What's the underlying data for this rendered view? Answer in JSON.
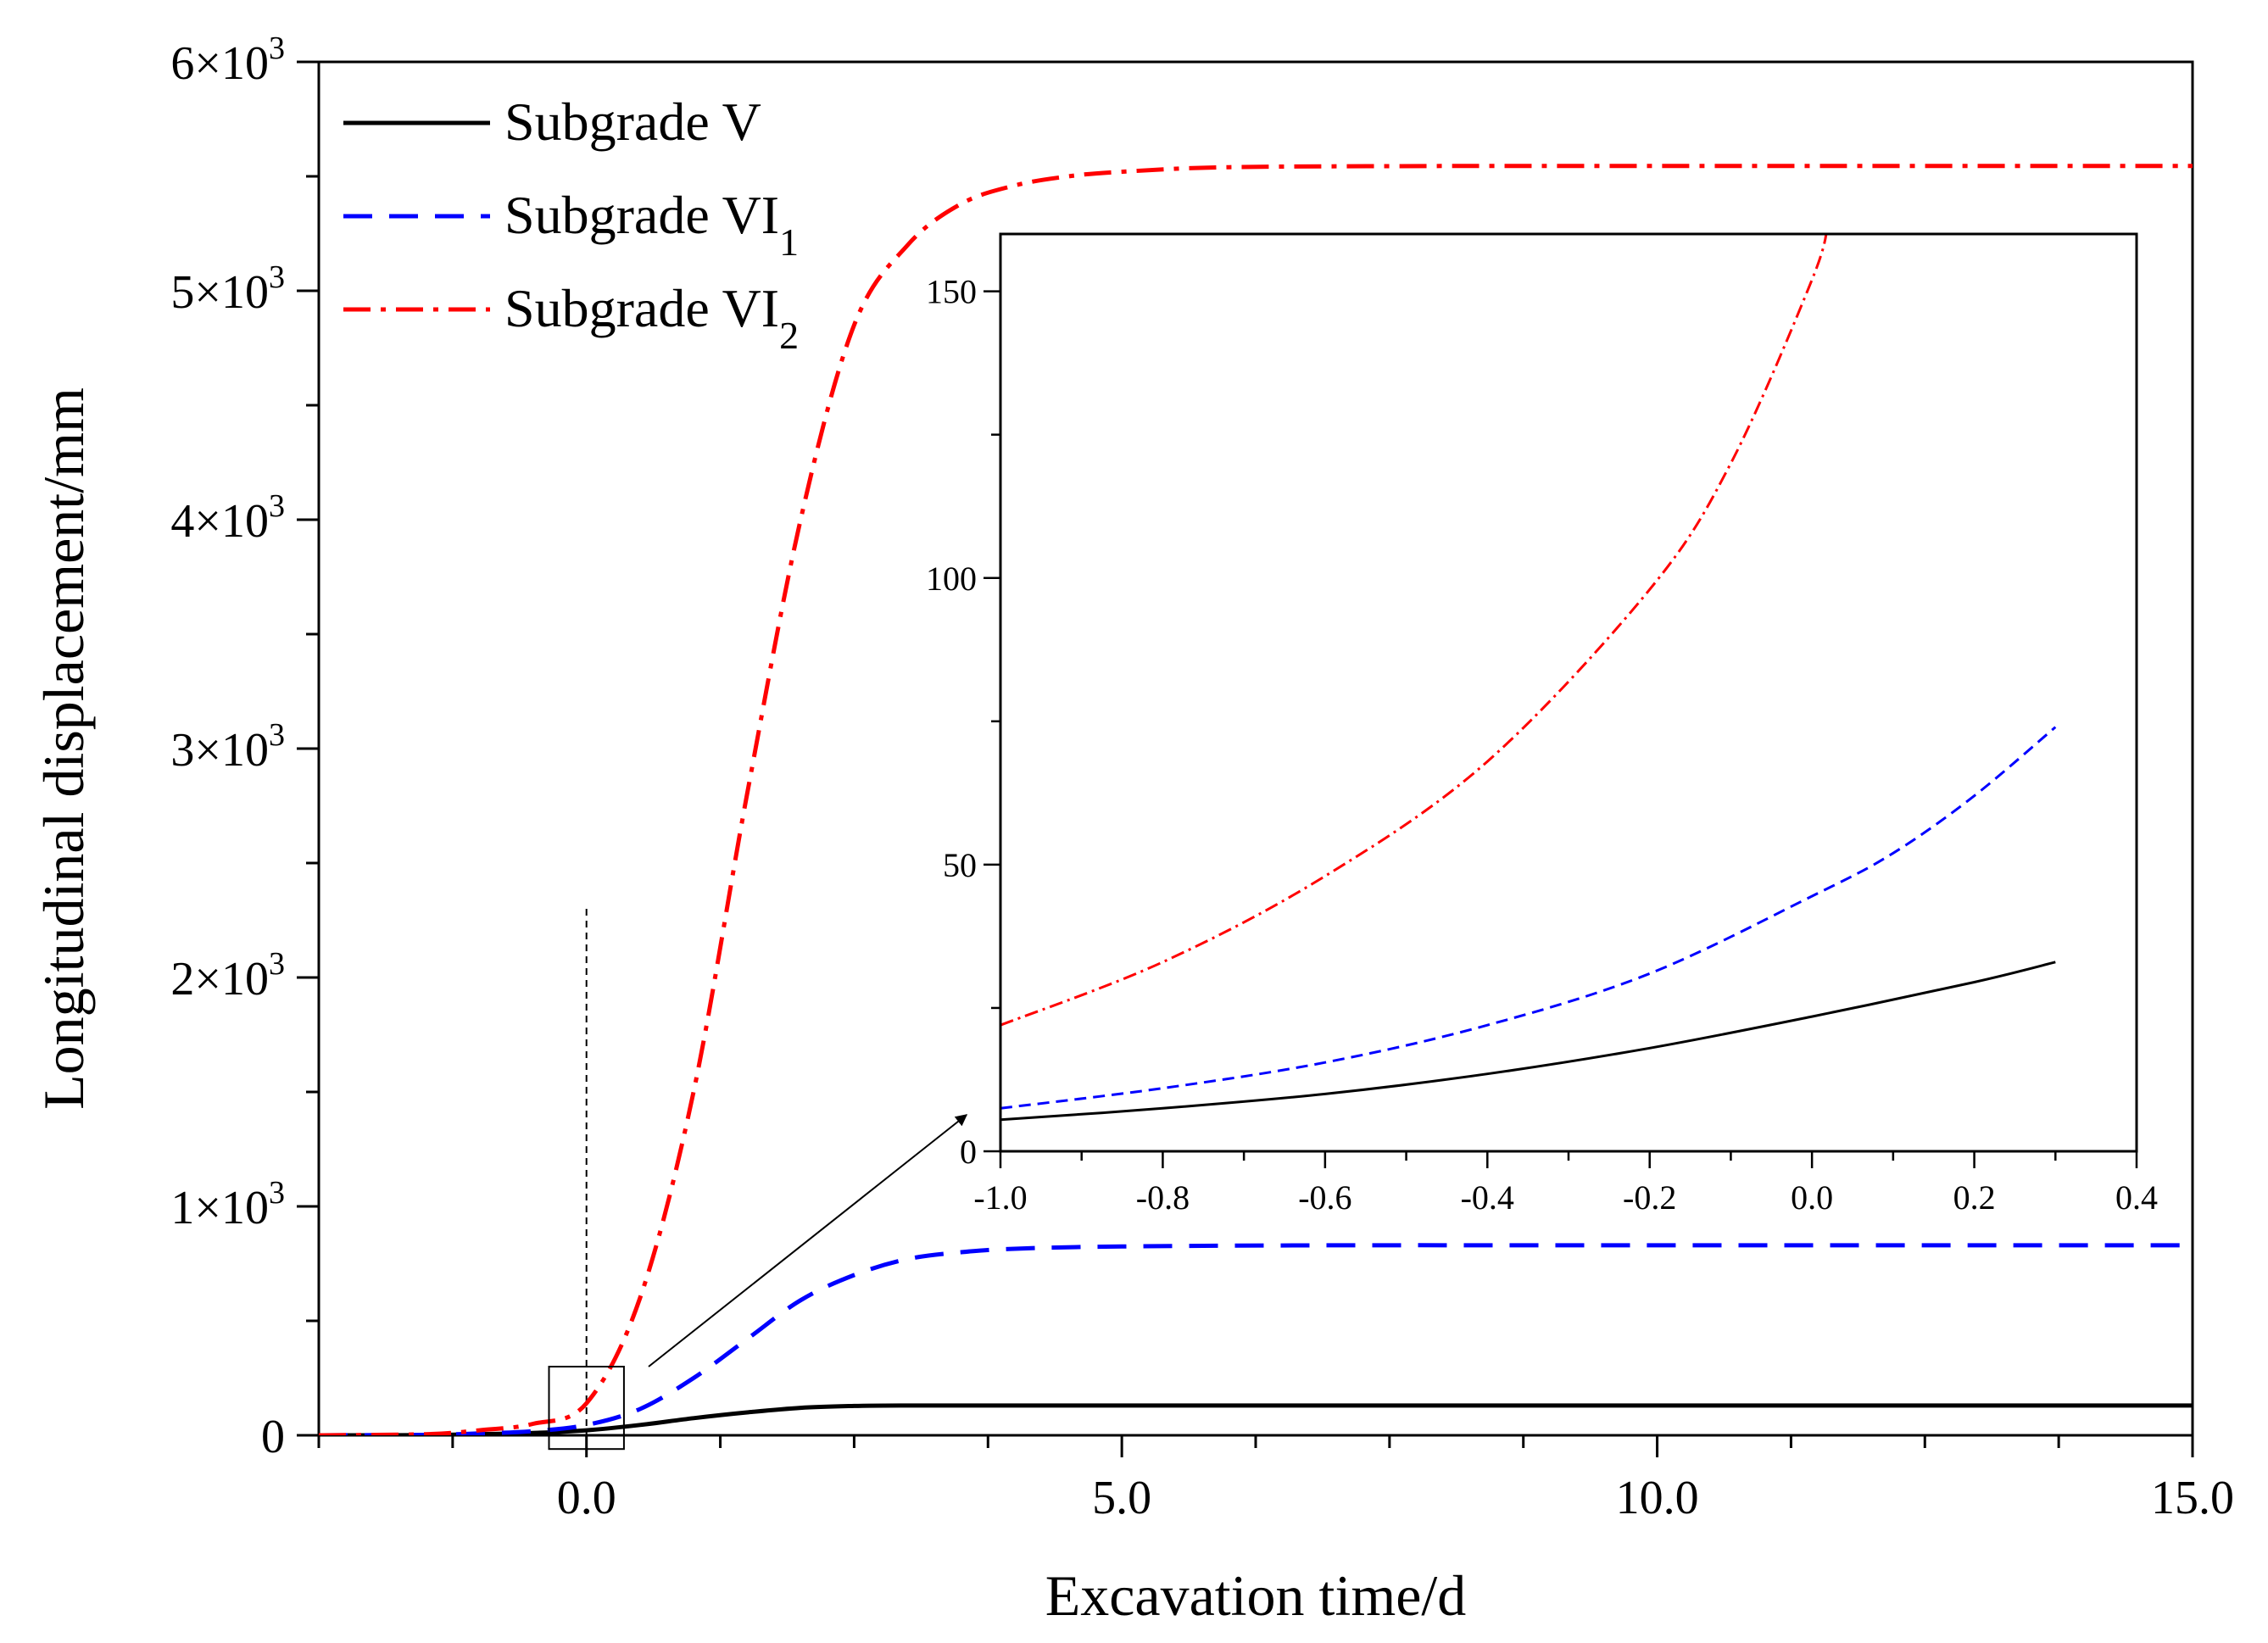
{
  "chart_data": {
    "type": "line",
    "xlabel": "Excavation time/d",
    "ylabel": "Longitudinal displacement/mm",
    "xlim": [
      -2.5,
      15.0
    ],
    "ylim": [
      0,
      6000
    ],
    "x_ticks": [
      0.0,
      5.0,
      10.0,
      15.0
    ],
    "x_tick_labels": [
      "0.0",
      "5.0",
      "10.0",
      "15.0"
    ],
    "y_ticks": [
      0,
      1000,
      2000,
      3000,
      4000,
      5000,
      6000
    ],
    "y_tick_labels": [
      {
        "mant": "0",
        "exp": ""
      },
      {
        "mant": "1×10",
        "exp": "3"
      },
      {
        "mant": "2×10",
        "exp": "3"
      },
      {
        "mant": "3×10",
        "exp": "3"
      },
      {
        "mant": "4×10",
        "exp": "3"
      },
      {
        "mant": "5×10",
        "exp": "3"
      },
      {
        "mant": "6×10",
        "exp": "3"
      }
    ],
    "legend_position": "top-left",
    "reference_line_x": 0.0,
    "zoom_box": {
      "x": [
        -0.35,
        0.35
      ],
      "y": [
        -60,
        300
      ]
    },
    "series": [
      {
        "name": "Subgrade V",
        "sub": "",
        "color": "#000000",
        "style": "solid",
        "x": [
          -2.5,
          -1.5,
          -1.0,
          -0.5,
          0,
          0.5,
          1.0,
          1.5,
          2.0,
          2.5,
          3.0,
          4.0,
          6.0,
          10.0,
          15.0
        ],
        "y": [
          0,
          1,
          5,
          10,
          22,
          45,
          75,
          100,
          120,
          128,
          130,
          130,
          130,
          130,
          130
        ]
      },
      {
        "name": "Subgrade VI",
        "sub": "1",
        "color": "#0000ff",
        "style": "dashed",
        "x": [
          -2.5,
          -1.5,
          -1.0,
          -0.5,
          0,
          0.5,
          1.0,
          1.5,
          2.0,
          2.5,
          3.0,
          3.5,
          4.0,
          5.0,
          7.0,
          10.0,
          15.0
        ],
        "y": [
          0,
          2,
          8,
          18,
          45,
          115,
          250,
          420,
          590,
          700,
          770,
          800,
          815,
          825,
          830,
          830,
          830
        ]
      },
      {
        "name": "Subgrade VI",
        "sub": "2",
        "color": "#ff0000",
        "style": "dashdot",
        "x": [
          -2.5,
          -1.5,
          -1.0,
          -0.5,
          0,
          0.5,
          1.0,
          1.5,
          2.0,
          2.5,
          3.0,
          3.5,
          4.0,
          4.5,
          5.0,
          6.0,
          8.0,
          10.0,
          15.0
        ],
        "y": [
          0,
          5,
          22,
          50,
          140,
          600,
          1500,
          2800,
          4000,
          4850,
          5200,
          5380,
          5460,
          5500,
          5520,
          5540,
          5545,
          5545,
          5545
        ]
      }
    ],
    "inset": {
      "xlim": [
        -1.0,
        0.4
      ],
      "ylim": [
        0,
        160
      ],
      "x_ticks": [
        -1.0,
        -0.8,
        -0.6,
        -0.4,
        -0.2,
        0.0,
        0.2,
        0.4
      ],
      "x_tick_labels": [
        "-1.0",
        "-0.8",
        "-0.6",
        "-0.4",
        "-0.2",
        "0.0",
        "0.2",
        "0.4"
      ],
      "y_ticks": [
        0,
        50,
        100,
        150
      ],
      "y_tick_labels": [
        "0",
        "50",
        "100",
        "150"
      ],
      "series": [
        {
          "name": "Subgrade V",
          "color": "#000000",
          "style": "solid",
          "x": [
            -1.0,
            -0.8,
            -0.6,
            -0.4,
            -0.2,
            0.0,
            0.2,
            0.3
          ],
          "y": [
            5.5,
            7.5,
            10,
            13.5,
            18,
            23.5,
            29.5,
            33
          ]
        },
        {
          "name": "Subgrade VI1",
          "color": "#0000ff",
          "style": "dashed",
          "x": [
            -1.0,
            -0.8,
            -0.6,
            -0.4,
            -0.2,
            0.0,
            0.1,
            0.2,
            0.3
          ],
          "y": [
            7.5,
            11,
            15.5,
            22,
            31,
            44.5,
            52,
            62,
            74
          ]
        },
        {
          "name": "Subgrade VI2",
          "color": "#ff0000",
          "style": "dashdot",
          "x": [
            -1.0,
            -0.8,
            -0.6,
            -0.4,
            -0.2,
            -0.1,
            0.0,
            0.02
          ],
          "y": [
            22,
            33,
            48,
            68,
            98,
            120,
            152,
            162
          ]
        }
      ]
    }
  }
}
